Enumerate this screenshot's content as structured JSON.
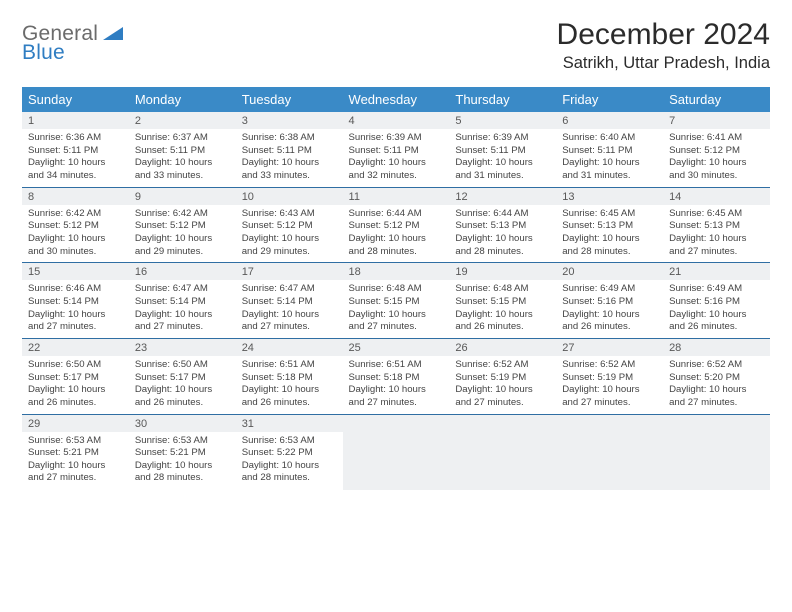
{
  "logo": {
    "word1": "General",
    "word2": "Blue",
    "triangle_color": "#2f7dc2",
    "text1_color": "#6b6b6b",
    "text2_color": "#2f7dc2"
  },
  "title": "December 2024",
  "subtitle": "Satrikh, Uttar Pradesh, India",
  "header_bg": "#3a8ac7",
  "header_fg": "#ffffff",
  "daynum_bg": "#eef0f2",
  "cell_border": "#2f6ea3",
  "text_color": "#444444",
  "weekdays": [
    "Sunday",
    "Monday",
    "Tuesday",
    "Wednesday",
    "Thursday",
    "Friday",
    "Saturday"
  ],
  "weeks": [
    [
      {
        "n": "1",
        "sr": "6:36 AM",
        "ss": "5:11 PM",
        "dl": "10 hours and 34 minutes."
      },
      {
        "n": "2",
        "sr": "6:37 AM",
        "ss": "5:11 PM",
        "dl": "10 hours and 33 minutes."
      },
      {
        "n": "3",
        "sr": "6:38 AM",
        "ss": "5:11 PM",
        "dl": "10 hours and 33 minutes."
      },
      {
        "n": "4",
        "sr": "6:39 AM",
        "ss": "5:11 PM",
        "dl": "10 hours and 32 minutes."
      },
      {
        "n": "5",
        "sr": "6:39 AM",
        "ss": "5:11 PM",
        "dl": "10 hours and 31 minutes."
      },
      {
        "n": "6",
        "sr": "6:40 AM",
        "ss": "5:11 PM",
        "dl": "10 hours and 31 minutes."
      },
      {
        "n": "7",
        "sr": "6:41 AM",
        "ss": "5:12 PM",
        "dl": "10 hours and 30 minutes."
      }
    ],
    [
      {
        "n": "8",
        "sr": "6:42 AM",
        "ss": "5:12 PM",
        "dl": "10 hours and 30 minutes."
      },
      {
        "n": "9",
        "sr": "6:42 AM",
        "ss": "5:12 PM",
        "dl": "10 hours and 29 minutes."
      },
      {
        "n": "10",
        "sr": "6:43 AM",
        "ss": "5:12 PM",
        "dl": "10 hours and 29 minutes."
      },
      {
        "n": "11",
        "sr": "6:44 AM",
        "ss": "5:12 PM",
        "dl": "10 hours and 28 minutes."
      },
      {
        "n": "12",
        "sr": "6:44 AM",
        "ss": "5:13 PM",
        "dl": "10 hours and 28 minutes."
      },
      {
        "n": "13",
        "sr": "6:45 AM",
        "ss": "5:13 PM",
        "dl": "10 hours and 28 minutes."
      },
      {
        "n": "14",
        "sr": "6:45 AM",
        "ss": "5:13 PM",
        "dl": "10 hours and 27 minutes."
      }
    ],
    [
      {
        "n": "15",
        "sr": "6:46 AM",
        "ss": "5:14 PM",
        "dl": "10 hours and 27 minutes."
      },
      {
        "n": "16",
        "sr": "6:47 AM",
        "ss": "5:14 PM",
        "dl": "10 hours and 27 minutes."
      },
      {
        "n": "17",
        "sr": "6:47 AM",
        "ss": "5:14 PM",
        "dl": "10 hours and 27 minutes."
      },
      {
        "n": "18",
        "sr": "6:48 AM",
        "ss": "5:15 PM",
        "dl": "10 hours and 27 minutes."
      },
      {
        "n": "19",
        "sr": "6:48 AM",
        "ss": "5:15 PM",
        "dl": "10 hours and 26 minutes."
      },
      {
        "n": "20",
        "sr": "6:49 AM",
        "ss": "5:16 PM",
        "dl": "10 hours and 26 minutes."
      },
      {
        "n": "21",
        "sr": "6:49 AM",
        "ss": "5:16 PM",
        "dl": "10 hours and 26 minutes."
      }
    ],
    [
      {
        "n": "22",
        "sr": "6:50 AM",
        "ss": "5:17 PM",
        "dl": "10 hours and 26 minutes."
      },
      {
        "n": "23",
        "sr": "6:50 AM",
        "ss": "5:17 PM",
        "dl": "10 hours and 26 minutes."
      },
      {
        "n": "24",
        "sr": "6:51 AM",
        "ss": "5:18 PM",
        "dl": "10 hours and 26 minutes."
      },
      {
        "n": "25",
        "sr": "6:51 AM",
        "ss": "5:18 PM",
        "dl": "10 hours and 27 minutes."
      },
      {
        "n": "26",
        "sr": "6:52 AM",
        "ss": "5:19 PM",
        "dl": "10 hours and 27 minutes."
      },
      {
        "n": "27",
        "sr": "6:52 AM",
        "ss": "5:19 PM",
        "dl": "10 hours and 27 minutes."
      },
      {
        "n": "28",
        "sr": "6:52 AM",
        "ss": "5:20 PM",
        "dl": "10 hours and 27 minutes."
      }
    ],
    [
      {
        "n": "29",
        "sr": "6:53 AM",
        "ss": "5:21 PM",
        "dl": "10 hours and 27 minutes."
      },
      {
        "n": "30",
        "sr": "6:53 AM",
        "ss": "5:21 PM",
        "dl": "10 hours and 28 minutes."
      },
      {
        "n": "31",
        "sr": "6:53 AM",
        "ss": "5:22 PM",
        "dl": "10 hours and 28 minutes."
      },
      null,
      null,
      null,
      null
    ]
  ],
  "labels": {
    "sunrise": "Sunrise:",
    "sunset": "Sunset:",
    "daylight": "Daylight:"
  }
}
